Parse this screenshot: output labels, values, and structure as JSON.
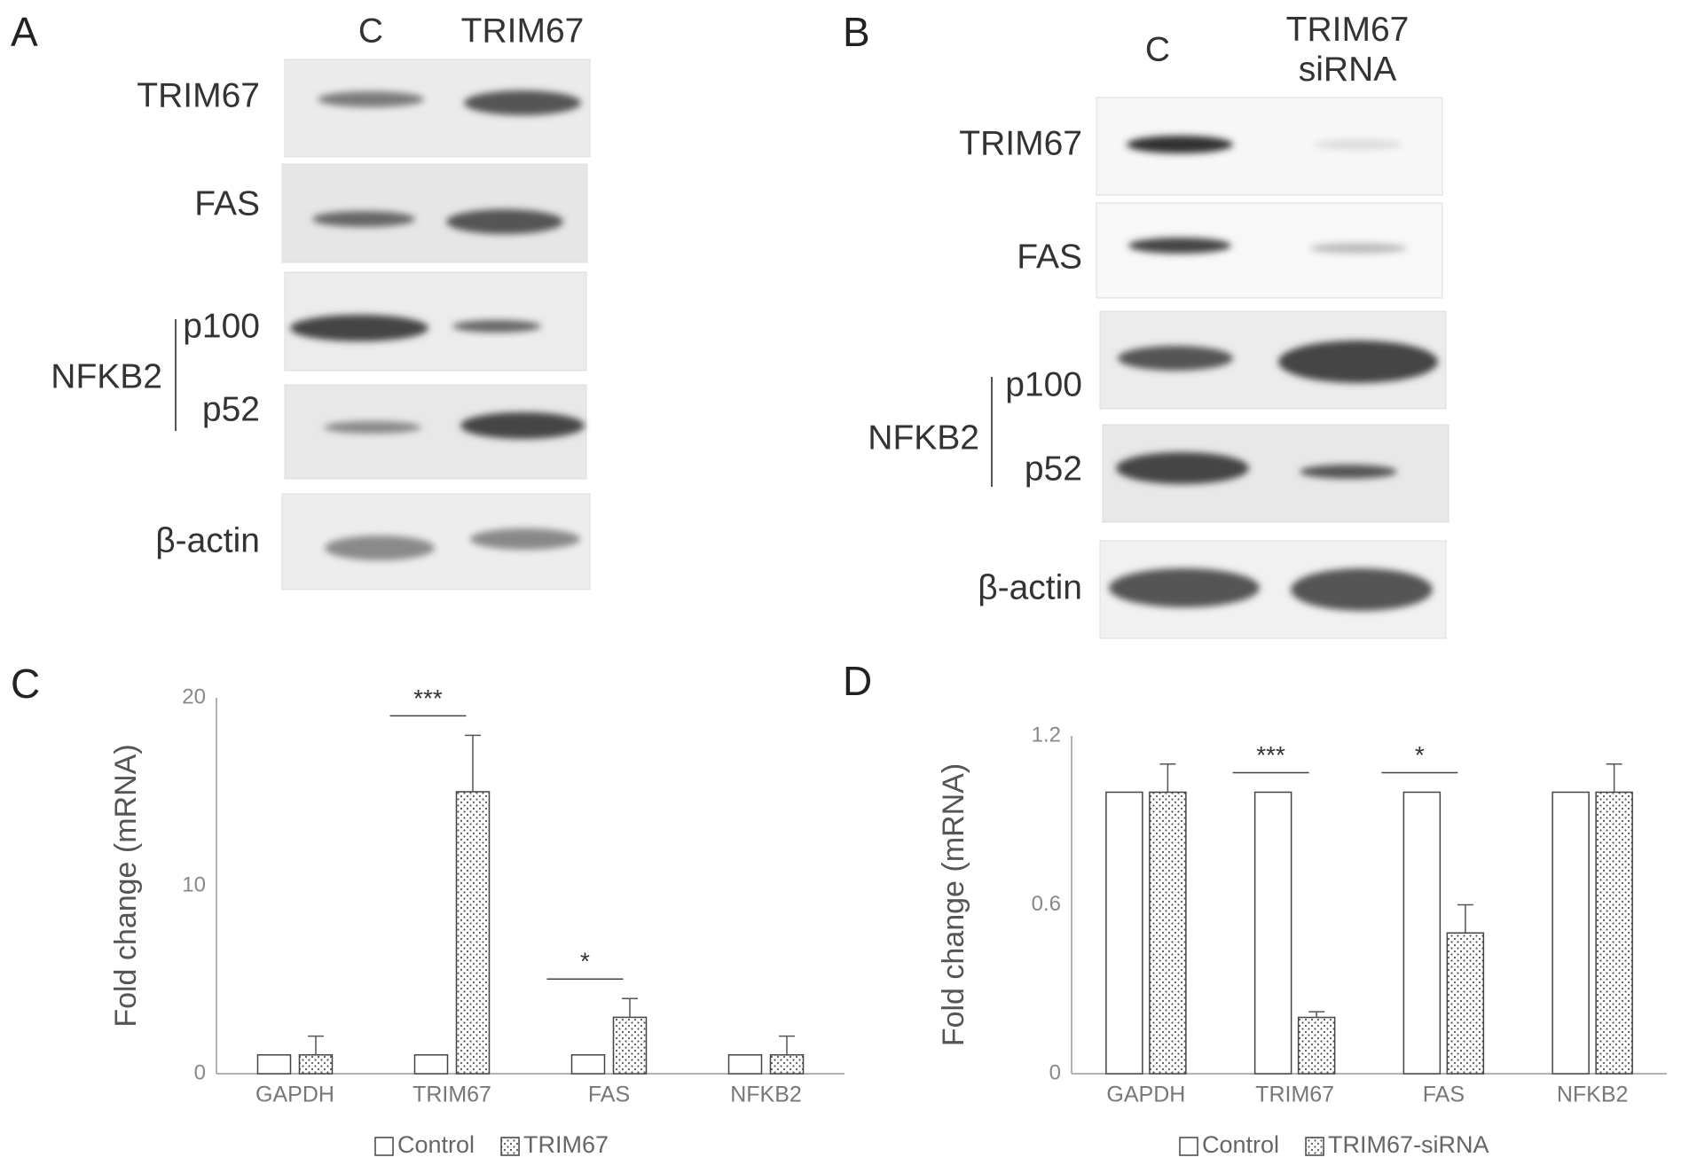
{
  "figure": {
    "blots": [
      {
        "panel": "A",
        "lanes": [
          [
            "C"
          ],
          [
            "TRIM67"
          ]
        ],
        "rows": [
          "TRIM67",
          "FAS",
          "p100",
          "p52",
          "β-actin"
        ],
        "group": "NFKB2"
      },
      {
        "panel": "B",
        "lanes": [
          [
            "C"
          ],
          [
            "TRIM67",
            "siRNA"
          ]
        ],
        "rows": [
          "TRIM67",
          "FAS",
          "p100",
          "p52",
          "β-actin"
        ],
        "group": "NFKB2"
      }
    ]
  },
  "chart_data": [
    {
      "type": "bar",
      "panel": "C",
      "ylabel": "Fold change (mRNA)",
      "categories": [
        "GAPDH",
        "TRIM67",
        "FAS",
        "NFKB2"
      ],
      "series": [
        {
          "name": "Control",
          "color": "#ffffff",
          "values": [
            1,
            1,
            1,
            1
          ]
        },
        {
          "name": "TRIM67",
          "color": "#ffffff",
          "pattern": "dots",
          "values": [
            1,
            15,
            3,
            1
          ],
          "errors": [
            1,
            3,
            1,
            1
          ]
        }
      ],
      "ylim": [
        0,
        20
      ],
      "yticks": [
        0,
        10,
        20
      ],
      "grid": false,
      "annotations": [
        {
          "text": "***",
          "category": "TRIM67"
        },
        {
          "text": "*",
          "category": "FAS"
        }
      ]
    },
    {
      "type": "bar",
      "panel": "D",
      "ylabel": "Fold change (mRNA)",
      "categories": [
        "GAPDH",
        "TRIM67",
        "FAS",
        "NFKB2"
      ],
      "series": [
        {
          "name": "Control",
          "color": "#ffffff",
          "values": [
            1,
            1,
            1,
            1
          ]
        },
        {
          "name": "TRIM67-siRNA",
          "color": "#ffffff",
          "pattern": "dots",
          "values": [
            1,
            0.2,
            0.5,
            1
          ],
          "errors": [
            0.1,
            0.02,
            0.1,
            0.1
          ]
        }
      ],
      "ylim": [
        0,
        1.2
      ],
      "yticks": [
        0,
        0.6,
        1.2
      ],
      "grid": false,
      "annotations": [
        {
          "text": "***",
          "category": "TRIM67"
        },
        {
          "text": "*",
          "category": "FAS"
        }
      ]
    }
  ]
}
